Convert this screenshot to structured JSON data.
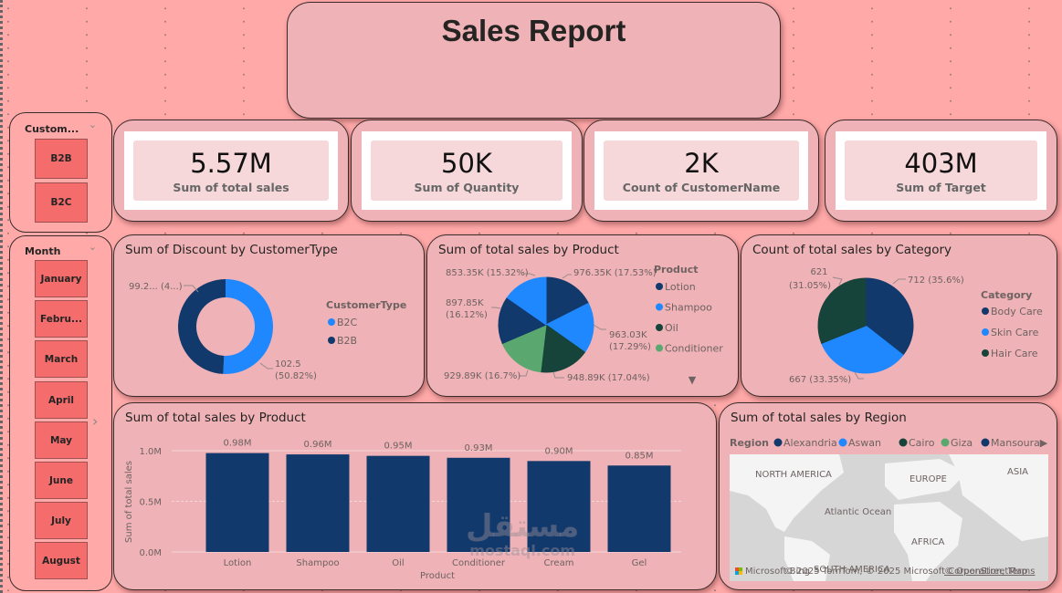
{
  "report": {
    "title": "Sales Report"
  },
  "kpis": [
    {
      "value": "5.57M",
      "label": "Sum of total sales"
    },
    {
      "value": "50K",
      "label": "Sum of Quantity"
    },
    {
      "value": "2K",
      "label": "Count of CustomerName"
    },
    {
      "value": "403M",
      "label": "Sum of Target"
    }
  ],
  "slicers": {
    "customer": {
      "header": "Custom...",
      "items": [
        "B2B",
        "B2C"
      ]
    },
    "month": {
      "header": "Month",
      "items": [
        "January",
        "Febru...",
        "March",
        "April",
        "May",
        "June",
        "July",
        "August"
      ]
    }
  },
  "icons": {
    "chevron_down": "⌄",
    "chevron_right": "›",
    "more_down": "▼",
    "more_right": "▶"
  },
  "colors": {
    "dark_blue": "#12396b",
    "bright_blue": "#1f88ff",
    "dark_green": "#16433a",
    "green": "#5aa870",
    "slicer_button": "#f46c6c",
    "card_bg": "#efb2b6",
    "page_bg": "#ffa9a9"
  },
  "chart_data": [
    {
      "type": "pie",
      "variant": "donut",
      "title": "Sum of Discount by CustomerType",
      "legend_title": "CustomerType",
      "legend_position": "right",
      "categories": [
        "B2C",
        "B2B"
      ],
      "values": [
        102.5,
        99.2
      ],
      "percents": [
        50.82,
        49.18
      ],
      "data_labels": [
        "102.5 (50.82%)",
        "99.2... (4...)"
      ]
    },
    {
      "type": "pie",
      "title": "Sum of total sales by Product",
      "legend_title": "Product",
      "legend_position": "right",
      "legend_visible": [
        "Lotion",
        "Shampoo",
        "Oil",
        "Conditioner"
      ],
      "categories": [
        "Lotion",
        "Shampoo",
        "Oil",
        "Conditioner",
        "Cream",
        "Gel"
      ],
      "values": [
        976350,
        963030,
        948890,
        929890,
        897850,
        853350
      ],
      "percents": [
        17.53,
        17.29,
        17.04,
        16.7,
        16.12,
        15.32
      ],
      "data_labels": [
        "976.35K (17.53%)",
        "963.03K (17.29%)",
        "948.89K (17.04%)",
        "929.89K (16.7%)",
        "897.85K (16.12%)",
        "853.35K (15.32%)"
      ]
    },
    {
      "type": "pie",
      "title": "Count of total sales by Category",
      "legend_title": "Category",
      "legend_position": "right",
      "categories": [
        "Body Care",
        "Skin Care",
        "Hair Care"
      ],
      "values": [
        712,
        667,
        621
      ],
      "percents": [
        35.6,
        33.35,
        31.05
      ],
      "data_labels": [
        "712 (35.6%)",
        "667 (33.35%)",
        "621 (31.05%)"
      ]
    },
    {
      "type": "bar",
      "title": "Sum of total sales by Product",
      "xlabel": "Product",
      "ylabel": "Sum of total sales",
      "categories": [
        "Lotion",
        "Shampoo",
        "Oil",
        "Conditioner",
        "Cream",
        "Gel"
      ],
      "values": [
        976350,
        963030,
        948890,
        929890,
        897850,
        853350
      ],
      "data_labels": [
        "0.98M",
        "0.96M",
        "0.95M",
        "0.93M",
        "0.90M",
        "0.85M"
      ],
      "yticks": [
        "0.0M",
        "0.5M",
        "1.0M"
      ],
      "ylim": [
        0,
        1000000
      ],
      "grid": true
    },
    {
      "type": "map",
      "title": "Sum of total sales by Region",
      "legend_title": "Region",
      "legend_position": "top",
      "categories": [
        "Alexandria",
        "Aswan",
        "Cairo",
        "Giza",
        "Mansoura"
      ],
      "map_labels": [
        "NORTH AMERICA",
        "EUROPE",
        "ASIA",
        "Atlantic Ocean",
        "AFRICA",
        "SOUTH AMERICA"
      ],
      "attribution": "© 2025 TomTom, © 2025 Microsoft Corporation,",
      "osm_link": "© OpenStreetMap",
      "terms_link": "Terms",
      "provider": "Microsoft Bing"
    }
  ],
  "watermark": {
    "arabic": "مستقل",
    "latin": "mostaql.com"
  }
}
